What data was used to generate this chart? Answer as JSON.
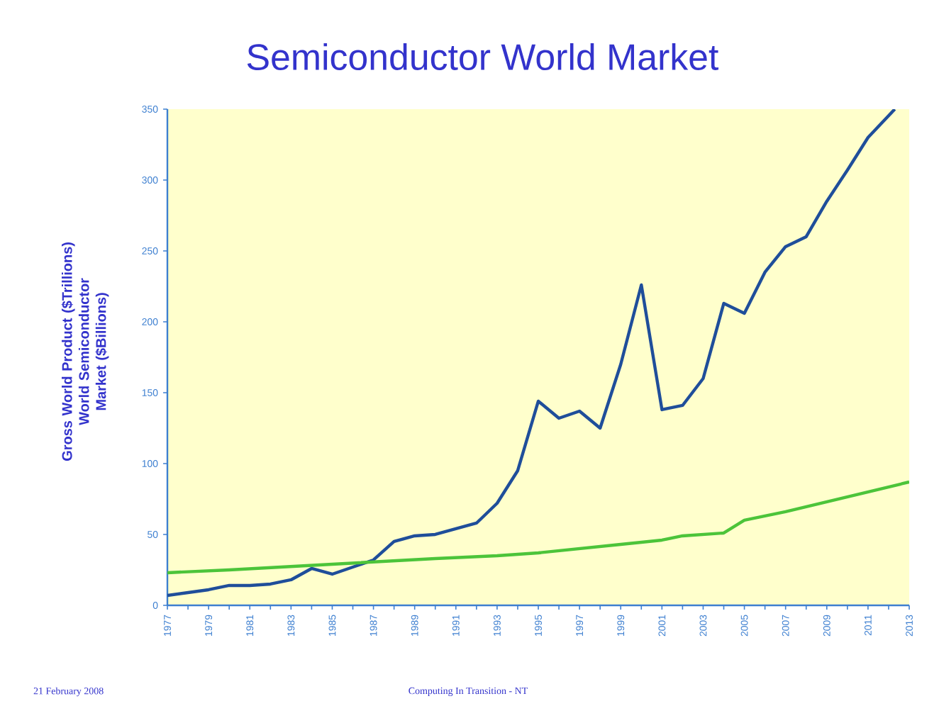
{
  "chart_data": {
    "type": "line",
    "title": "Semiconductor World Market",
    "ylabel": "Gross World Product ($Trillions) World Semiconductor Market ($Billions)",
    "xlim": [
      1977,
      2013
    ],
    "ylim": [
      0,
      350
    ],
    "xticks": [
      1977,
      {
        "value": 1978,
        "label": null
      },
      1979,
      {
        "value": 1980,
        "label": null
      },
      1981,
      {
        "value": 1982,
        "label": null
      },
      1983,
      {
        "value": 1984,
        "label": null
      },
      1985,
      {
        "value": 1986,
        "label": null
      },
      1987,
      {
        "value": 1988,
        "label": null
      },
      1989,
      {
        "value": 1990,
        "label": null
      },
      1991,
      {
        "value": 1992,
        "label": null
      },
      1993,
      {
        "value": 1994,
        "label": null
      },
      1995,
      {
        "value": 1996,
        "label": null
      },
      1997,
      {
        "value": 1998,
        "label": null
      },
      1999,
      {
        "value": 2000,
        "label": null
      },
      2001,
      {
        "value": 2002,
        "label": null
      },
      2003,
      {
        "value": 2004,
        "label": null
      },
      2005,
      {
        "value": 2006,
        "label": null
      },
      2007,
      {
        "value": 2008,
        "label": null
      },
      2009,
      {
        "value": 2010,
        "label": null
      },
      2011,
      {
        "value": 2012,
        "label": null
      },
      2013
    ],
    "yticks": [
      0,
      50,
      100,
      150,
      200,
      250,
      300,
      350
    ],
    "grid": false,
    "marker": "none",
    "line_style": "solid",
    "series": [
      {
        "color": "#1f4e9a",
        "x": [
          1977,
          1978,
          1979,
          1980,
          1981,
          1982,
          1983,
          1984,
          1985,
          1986,
          1987,
          1988,
          1989,
          1990,
          1991,
          1992,
          1993,
          1994,
          1995,
          1996,
          1997,
          1998,
          1999,
          2000,
          2001,
          2002,
          2003,
          2004,
          2005,
          2006,
          2007,
          2008,
          2009,
          2010,
          2011,
          2012.3
        ],
        "values": [
          7,
          9,
          11,
          14,
          14,
          15,
          18,
          26,
          22,
          27,
          32,
          45,
          49,
          50,
          54,
          58,
          72,
          95,
          144,
          132,
          137,
          125,
          170,
          226,
          138,
          141,
          160,
          213,
          206,
          235,
          253,
          260,
          285,
          307,
          330,
          350
        ]
      },
      {
        "color": "#4cc43a",
        "x": [
          1977,
          1980,
          1985,
          1990,
          1993,
          1995,
          1997,
          1999,
          2001,
          2002,
          2004,
          2005,
          2007,
          2009,
          2011,
          2013
        ],
        "values": [
          23,
          25,
          29,
          33,
          35,
          37,
          40,
          43,
          46,
          49,
          51,
          60,
          66,
          73,
          80,
          87
        ]
      }
    ],
    "annotations": [
      "21 February 2008",
      "Computing In Transition - NT"
    ]
  }
}
